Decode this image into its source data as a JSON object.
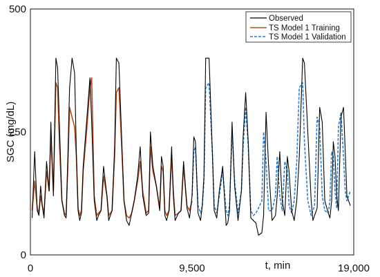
{
  "chart_data": {
    "type": "line",
    "xlabel": "t, min",
    "ylabel": "SGC (mg/dL)",
    "xlim": [
      0,
      19000
    ],
    "ylim": [
      0,
      500
    ],
    "xticks": [
      {
        "value": 0,
        "label": "0"
      },
      {
        "value": 9500,
        "label": "9,500"
      },
      {
        "value": 19000,
        "label": "19,000"
      }
    ],
    "yticks": [
      {
        "value": 0,
        "label": "0"
      },
      {
        "value": 250,
        "label": "250"
      },
      {
        "value": 500,
        "label": "500"
      }
    ],
    "grid": false,
    "legend_position": "top-right",
    "series": [
      {
        "name": "Observed",
        "color": "#000000",
        "style": "solid",
        "x": [
          100,
          250,
          400,
          500,
          600,
          700,
          800,
          950,
          1100,
          1200,
          1350,
          1500,
          1600,
          1700,
          1850,
          2000,
          2100,
          2200,
          2300,
          2450,
          2600,
          2700,
          2800,
          2900,
          3000,
          3100,
          3300,
          3500,
          3600,
          3750,
          3900,
          4000,
          4150,
          4300,
          4500,
          4600,
          4800,
          4950,
          5050,
          5200,
          5350,
          5500,
          5650,
          5800,
          5950,
          6100,
          6300,
          6450,
          6600,
          6800,
          6950,
          7050,
          7200,
          7400,
          7600,
          7700,
          7800,
          7900,
          8000,
          8150,
          8300,
          8400,
          8500,
          8700,
          8850,
          9000,
          9200,
          9350,
          9500,
          9600,
          9700,
          9850,
          10000,
          10100,
          10200,
          10300,
          10500,
          10700,
          10800,
          10950,
          11100,
          11300,
          11500,
          11600,
          11700,
          11850,
          12000,
          12200,
          12400,
          12500,
          12650,
          12800,
          12950,
          13100,
          13250,
          13400,
          13600,
          13700,
          13850,
          14000,
          14200,
          14400,
          14500,
          14650,
          14800,
          14950,
          15100,
          15200,
          15350,
          15500,
          15650,
          15800,
          16000,
          16100,
          16300,
          16500,
          16600,
          16700,
          16850,
          17000,
          17150,
          17300,
          17500,
          17600,
          17700,
          17800,
          17900,
          18000,
          18100,
          18250,
          18400,
          18500,
          18600,
          18800
        ],
        "values": [
          75,
          210,
          90,
          80,
          140,
          100,
          75,
          190,
          130,
          270,
          120,
          400,
          380,
          270,
          110,
          80,
          75,
          200,
          340,
          400,
          370,
          210,
          90,
          70,
          85,
          180,
          270,
          360,
          270,
          110,
          70,
          80,
          90,
          180,
          120,
          70,
          90,
          220,
          400,
          390,
          250,
          110,
          70,
          60,
          85,
          110,
          160,
          220,
          120,
          80,
          85,
          250,
          180,
          140,
          90,
          200,
          180,
          80,
          70,
          90,
          220,
          120,
          70,
          85,
          90,
          190,
          95,
          75,
          120,
          240,
          230,
          85,
          70,
          100,
          160,
          400,
          400,
          200,
          90,
          75,
          130,
          180,
          60,
          65,
          90,
          270,
          140,
          70,
          130,
          240,
          330,
          230,
          75,
          70,
          65,
          40,
          45,
          80,
          290,
          180,
          70,
          80,
          120,
          210,
          110,
          80,
          200,
          170,
          90,
          70,
          110,
          200,
          400,
          390,
          250,
          110,
          70,
          80,
          95,
          300,
          270,
          110,
          85,
          75,
          110,
          230,
          200,
          120,
          90,
          280,
          300,
          210,
          120,
          100
        ]
      },
      {
        "name": "TS Model 1 Training",
        "color": "#b84a1a",
        "style": "solid",
        "x": [
          100,
          250,
          400,
          500,
          600,
          700,
          800,
          950,
          1100,
          1200,
          1350,
          1500,
          1600,
          1700,
          1850,
          2000,
          2100,
          2200,
          2300,
          2450,
          2600,
          2700,
          2800,
          2900,
          3000,
          3100,
          3300,
          3500,
          3600,
          3750,
          3900,
          4000,
          4150,
          4300,
          4500,
          4600,
          4800,
          4950,
          5050,
          5200,
          5350,
          5500,
          5650,
          5800,
          5950,
          6100,
          6300,
          6450,
          6600,
          6800,
          6950,
          7050,
          7200,
          7400,
          7600,
          7700,
          7800,
          7900,
          8000,
          8150,
          8300,
          8400,
          8500,
          8700,
          8850,
          9000,
          9200,
          9350,
          9500
        ],
        "values": [
          90,
          150,
          95,
          85,
          120,
          100,
          85,
          170,
          130,
          240,
          130,
          350,
          340,
          230,
          110,
          85,
          80,
          180,
          300,
          280,
          260,
          200,
          95,
          80,
          90,
          170,
          250,
          340,
          360,
          120,
          80,
          85,
          90,
          160,
          120,
          80,
          90,
          200,
          330,
          340,
          230,
          110,
          80,
          75,
          85,
          110,
          150,
          190,
          130,
          85,
          90,
          220,
          170,
          140,
          95,
          180,
          170,
          90,
          80,
          90,
          200,
          130,
          80,
          85,
          90,
          180,
          100,
          90,
          110
        ]
      },
      {
        "name": "TS Model 1 Validation",
        "color": "#2a7fd4",
        "style": "dashed",
        "x": [
          9500,
          9600,
          9700,
          9850,
          10000,
          10100,
          10200,
          10300,
          10500,
          10700,
          10800,
          10950,
          11100,
          11300,
          11500,
          11600,
          11700,
          11850,
          12000,
          12200,
          12400,
          12500,
          12650,
          12800,
          12950,
          13100,
          13250,
          13400,
          13600,
          13700,
          13850,
          14000,
          14200,
          14400,
          14500,
          14650,
          14800,
          14950,
          15100,
          15200,
          15350,
          15500,
          15650,
          15800,
          16000,
          16100,
          16300,
          16500,
          16600,
          16700,
          16850,
          17000,
          17150,
          17300,
          17500,
          17600,
          17700,
          17800,
          17900,
          18000,
          18100,
          18250,
          18400,
          18500,
          18600,
          18800
        ],
        "values": [
          120,
          210,
          220,
          100,
          85,
          100,
          150,
          340,
          350,
          200,
          100,
          85,
          120,
          170,
          90,
          80,
          100,
          250,
          150,
          85,
          130,
          220,
          300,
          220,
          90,
          80,
          85,
          95,
          110,
          250,
          190,
          90,
          90,
          120,
          200,
          120,
          90,
          190,
          170,
          100,
          85,
          110,
          190,
          340,
          350,
          230,
          110,
          80,
          90,
          100,
          280,
          260,
          120,
          90,
          85,
          110,
          210,
          200,
          130,
          95,
          260,
          290,
          200,
          130,
          110,
          130
        ]
      }
    ]
  }
}
